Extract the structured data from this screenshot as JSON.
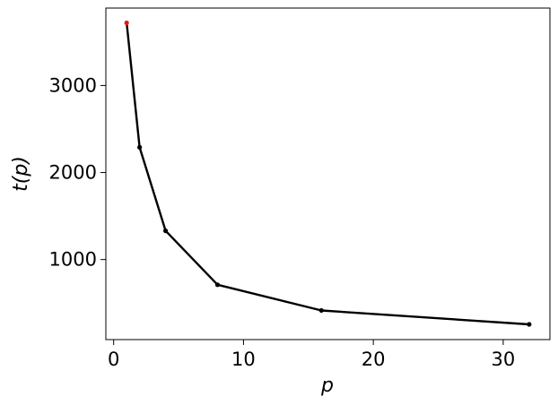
{
  "chart_data": {
    "type": "line",
    "xlabel": "p",
    "ylabel": "t(p)",
    "xlim": [
      -0.6,
      33.6
    ],
    "ylim": [
      80,
      3890
    ],
    "xticks": [
      0,
      10,
      20,
      30
    ],
    "yticks": [
      1000,
      2000,
      3000
    ],
    "x_tick_labels": [
      "0",
      "10",
      "20",
      "30"
    ],
    "y_tick_labels": [
      "1000",
      "2000",
      "3000"
    ],
    "grid": false,
    "series": [
      {
        "x": [
          1,
          2,
          4,
          8,
          16,
          32
        ],
        "y": [
          3720,
          2290,
          1330,
          710,
          415,
          255
        ],
        "line_color": "#000000",
        "marker_color": "#000000",
        "highlight_first_point_color": "#e31a1c"
      }
    ]
  }
}
